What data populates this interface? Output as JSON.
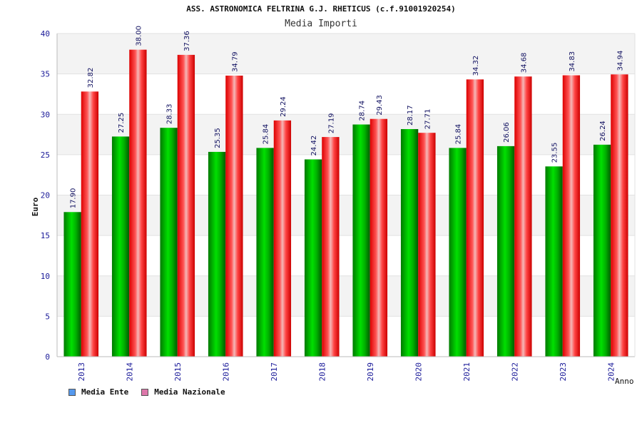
{
  "chart_data": {
    "type": "bar",
    "title": "ASS. ASTRONOMICA FELTRINA G.J. RHETICUS (c.f.91001920254)",
    "subtitle": "Media Importi",
    "xlabel": "Anno",
    "ylabel": "Euro",
    "ylim": [
      0,
      40
    ],
    "yticks": [
      0,
      5,
      10,
      15,
      20,
      25,
      30,
      35,
      40
    ],
    "categories": [
      "2013",
      "2014",
      "2015",
      "2016",
      "2017",
      "2018",
      "2019",
      "2020",
      "2021",
      "2022",
      "2023",
      "2024"
    ],
    "series": [
      {
        "name": "Media Ente",
        "color": "#00aa00",
        "legend_color": "#5599ee",
        "values": [
          17.9,
          27.25,
          28.33,
          25.35,
          25.84,
          24.42,
          28.74,
          28.17,
          25.84,
          26.06,
          23.55,
          26.24
        ],
        "labels": [
          "17.90",
          "27.25",
          "28.33",
          "25.35",
          "25.84",
          "24.42",
          "28.74",
          "28.17",
          "25.84",
          "26.06",
          "23.55",
          "26.24"
        ]
      },
      {
        "name": "Media Nazionale",
        "color": "#ee1111",
        "legend_color": "#dd77aa",
        "values": [
          32.82,
          38.0,
          37.36,
          34.79,
          29.24,
          27.19,
          29.43,
          27.71,
          34.32,
          34.68,
          34.83,
          34.94
        ],
        "labels": [
          "32.82",
          "38.00",
          "37.36",
          "34.79",
          "29.24",
          "27.19",
          "29.43",
          "27.71",
          "34.32",
          "34.68",
          "34.83",
          "34.94"
        ]
      }
    ],
    "grid": true,
    "legend": "bottom-left"
  }
}
